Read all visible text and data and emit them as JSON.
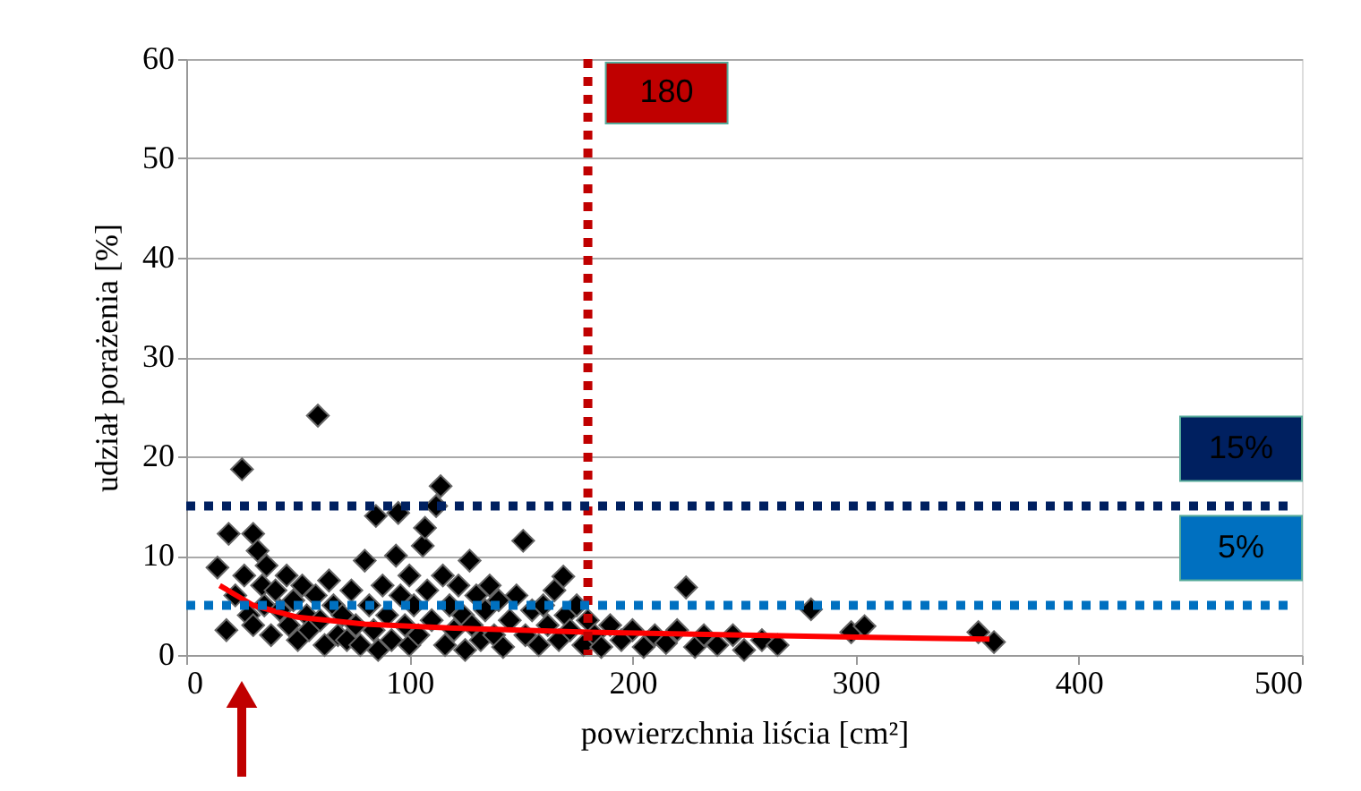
{
  "chart_data": {
    "type": "scatter",
    "xlabel": "powierzchnia liścia [cm²]",
    "ylabel": "udział porażenia [%]",
    "xlim": [
      0,
      500
    ],
    "xticks": [
      0,
      100,
      200,
      300,
      400,
      500
    ],
    "ylim": [
      0,
      60
    ],
    "yticks": [
      0,
      10,
      20,
      30,
      40,
      50,
      60
    ],
    "grid": "y",
    "series": [
      {
        "marker": "diamond",
        "color": "#000000",
        "x": [
          14,
          18,
          19,
          22,
          25,
          26,
          28,
          30,
          30,
          32,
          34,
          35,
          36,
          38,
          40,
          42,
          45,
          46,
          48,
          50,
          52,
          54,
          55,
          58,
          59,
          60,
          62,
          64,
          66,
          68,
          70,
          72,
          74,
          76,
          78,
          80,
          82,
          84,
          85,
          86,
          88,
          90,
          92,
          94,
          95,
          96,
          98,
          100,
          100,
          102,
          104,
          106,
          107,
          108,
          110,
          112,
          114,
          115,
          116,
          118,
          120,
          122,
          124,
          125,
          127,
          128,
          130,
          132,
          134,
          136,
          138,
          140,
          142,
          145,
          148,
          151,
          152,
          155,
          158,
          160,
          162,
          165,
          167,
          169,
          170,
          172,
          175,
          178,
          180,
          183,
          186,
          190,
          195,
          200,
          205,
          210,
          215,
          220,
          224,
          228,
          232,
          238,
          245,
          250,
          258,
          265,
          280,
          298,
          304,
          355,
          362
        ],
        "values": [
          8.8,
          2.5,
          12.2,
          6,
          18.7,
          8,
          4,
          12.2,
          3,
          10.5,
          7,
          5,
          9,
          2,
          6.5,
          4.5,
          8,
          3,
          5.5,
          1.5,
          7,
          4,
          2.5,
          6,
          24.1,
          3.5,
          1,
          7.5,
          5,
          2,
          4,
          1.5,
          6.5,
          3,
          1,
          9.5,
          5,
          2.5,
          14,
          0.5,
          7,
          4,
          1.5,
          10,
          14.3,
          6,
          3,
          8,
          1,
          5,
          2,
          11,
          12.8,
          6.5,
          3.5,
          15,
          17,
          8,
          1,
          5,
          2.5,
          7,
          4,
          0.5,
          9.5,
          3,
          6,
          1.5,
          4.5,
          7,
          2,
          5.5,
          0.8,
          3.5,
          6,
          11.5,
          2,
          4.5,
          1,
          5,
          3,
          6.5,
          1.5,
          7.9,
          4,
          2.5,
          5,
          1,
          3.5,
          2,
          0.8,
          3,
          1.5,
          2.5,
          0.8,
          2,
          1.2,
          2.5,
          6.8,
          0.8,
          2,
          1,
          2,
          0.5,
          1.5,
          1,
          4.6,
          2.3,
          2.9,
          2.3,
          1.3
        ]
      },
      {
        "type": "line",
        "color": "#ff0000",
        "x": [
          15,
          30,
          50,
          80,
          120,
          180,
          250,
          300,
          360
        ],
        "values": [
          7,
          5,
          3.8,
          3.1,
          2.7,
          2.3,
          2,
          1.8,
          1.6
        ]
      }
    ],
    "ref_lines": [
      {
        "axis": "x",
        "value": 180,
        "label": "180",
        "color": "#c00000",
        "line_style": "dotted"
      },
      {
        "axis": "y",
        "value": 15,
        "label": "15%",
        "color": "#002060",
        "line_style": "dotted"
      },
      {
        "axis": "y",
        "value": 5,
        "label": "5%",
        "color": "#0070c0",
        "line_style": "dotted"
      }
    ]
  }
}
